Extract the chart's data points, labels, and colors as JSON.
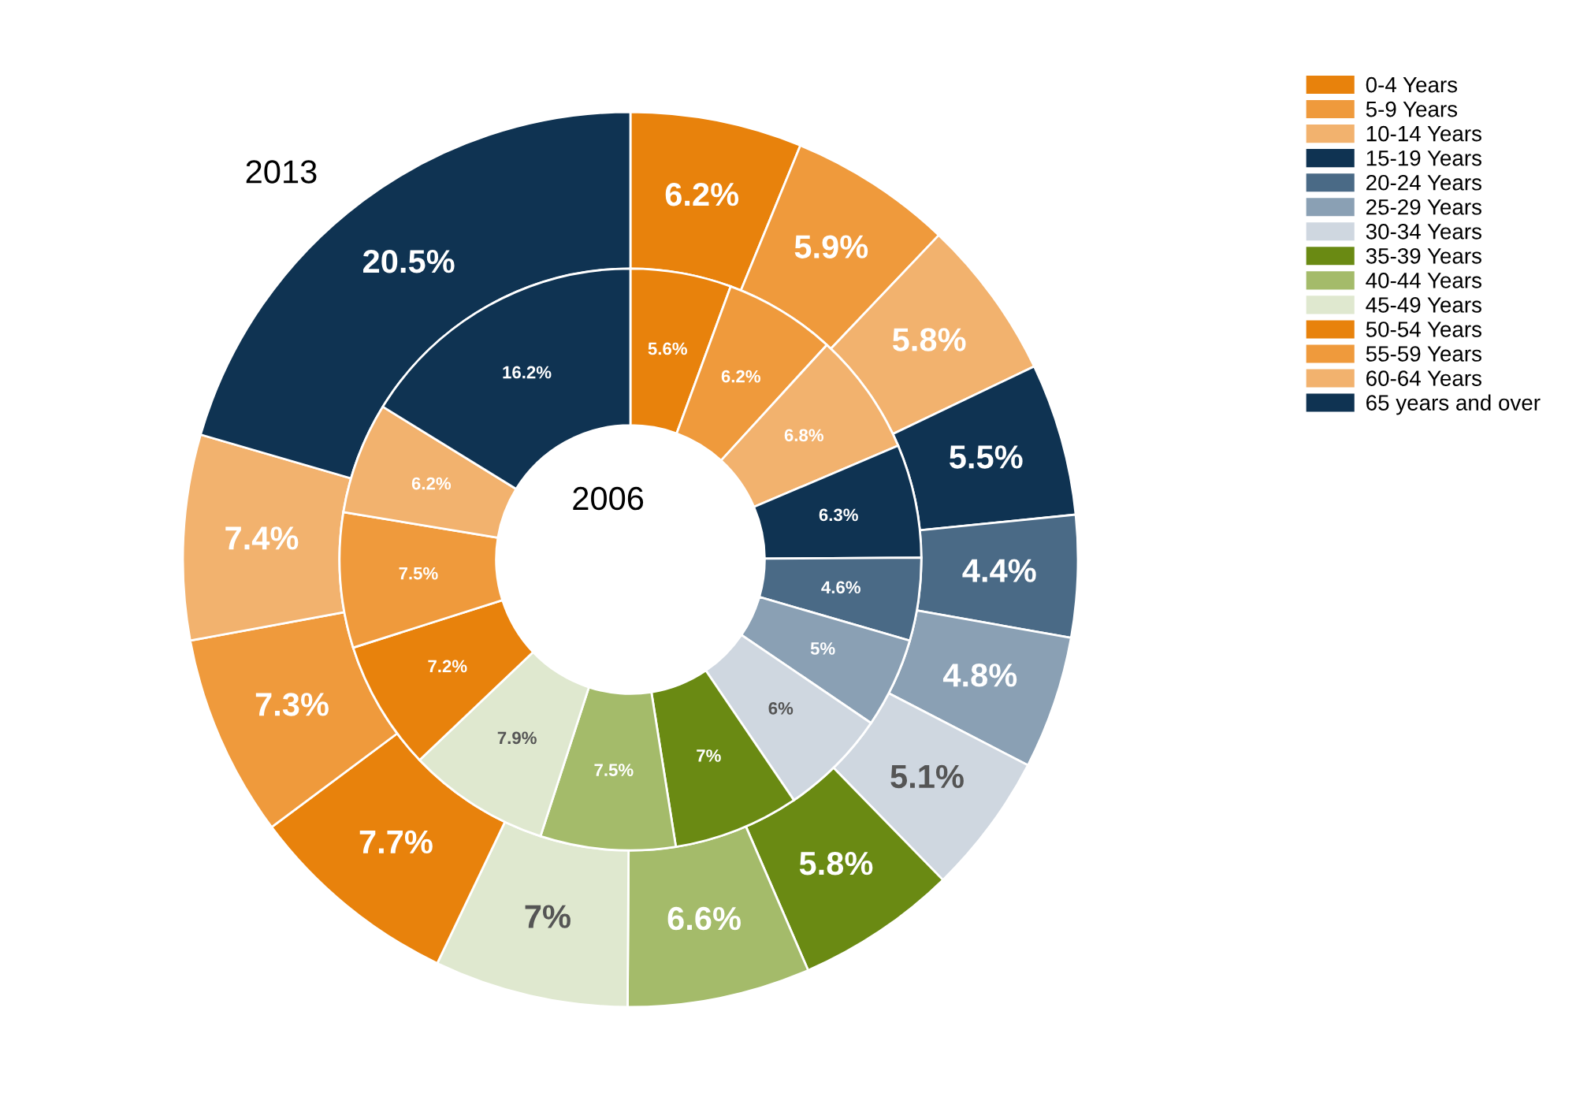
{
  "chart_data": {
    "type": "donut",
    "categories": [
      "0-4 Years",
      "5-9 Years",
      "10-14 Years",
      "15-19 Years",
      "20-24 Years",
      "25-29 Years",
      "30-34 Years",
      "35-39 Years",
      "40-44 Years",
      "45-49 Years",
      "50-54 Years",
      "55-59 Years",
      "60-64 Years",
      "65 years and over"
    ],
    "colors": [
      "#e8820c",
      "#ef9a3c",
      "#f2b26e",
      "#0f3352",
      "#4a6a86",
      "#8aa0b4",
      "#cfd7e0",
      "#6a8a13",
      "#a4bb6a",
      "#dfe8cf",
      "#e8820c",
      "#ef9a3c",
      "#f2b26e",
      "#0f3352"
    ],
    "series": [
      {
        "name": "2013",
        "values": [
          6.2,
          5.9,
          5.8,
          5.5,
          4.4,
          4.8,
          5.1,
          5.8,
          6.6,
          7,
          7.7,
          7.3,
          7.4,
          20.5
        ],
        "value_labels": [
          "6.2%",
          "5.9%",
          "5.8%",
          "5.5%",
          "4.4%",
          "4.8%",
          "5.1%",
          "5.8%",
          "6.6%",
          "7%",
          "7.7%",
          "7.3%",
          "7.4%",
          "20.5%"
        ]
      },
      {
        "name": "2006",
        "values": [
          5.6,
          6.2,
          6.8,
          6.3,
          4.6,
          5,
          6,
          7,
          7.5,
          7.9,
          7.2,
          7.5,
          6.2,
          16.2
        ],
        "value_labels": [
          "5.6%",
          "6.2%",
          "6.8%",
          "6.3%",
          "4.6%",
          "5%",
          "6%",
          "7%",
          "7.5%",
          "7.9%",
          "7.2%",
          "7.5%",
          "6.2%",
          "16.2%"
        ]
      }
    ],
    "legend": "top right"
  }
}
